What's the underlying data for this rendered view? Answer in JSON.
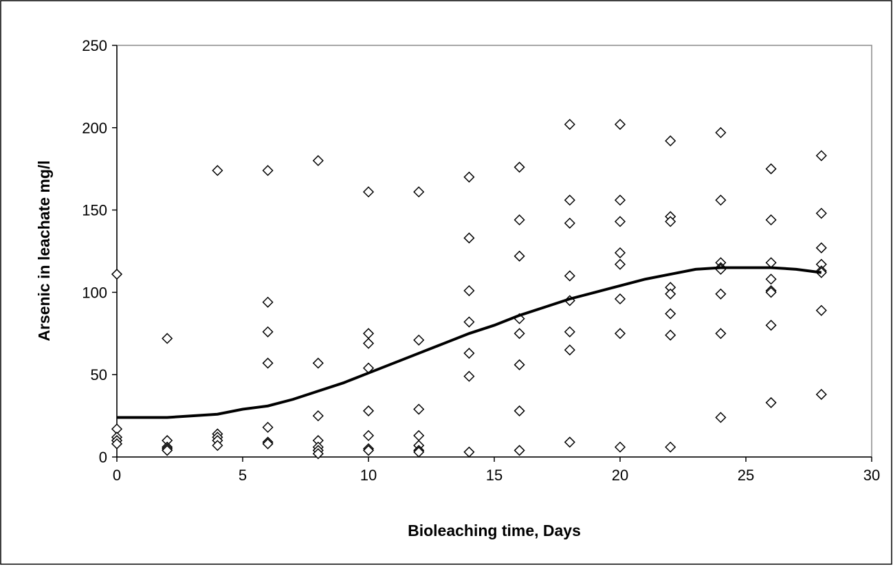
{
  "chart_data": {
    "type": "scatter",
    "x_label": "Bioleaching time, Days",
    "y_label": "Arsenic in leachate mg/l",
    "xlim": [
      0,
      30
    ],
    "xticks": [
      0,
      5,
      10,
      15,
      20,
      25,
      30
    ],
    "ylim": [
      0,
      250
    ],
    "yticks": [
      0,
      50,
      100,
      150,
      200,
      250
    ],
    "grid": false,
    "series": [
      {
        "type": "scatter",
        "color": "#000000",
        "x": [
          0,
          0,
          0,
          0,
          0,
          2,
          2,
          2,
          2,
          2,
          4,
          4,
          4,
          4,
          4,
          6,
          6,
          6,
          6,
          6,
          6,
          6,
          8,
          8,
          8,
          8,
          8,
          8,
          8,
          10,
          10,
          10,
          10,
          10,
          10,
          10,
          10,
          12,
          12,
          12,
          12,
          12,
          12,
          12,
          14,
          14,
          14,
          14,
          14,
          14,
          14,
          16,
          16,
          16,
          16,
          16,
          16,
          16,
          16,
          18,
          18,
          18,
          18,
          18,
          18,
          18,
          18,
          20,
          20,
          20,
          20,
          20,
          20,
          20,
          20,
          22,
          22,
          22,
          22,
          22,
          22,
          22,
          22,
          24,
          24,
          24,
          24,
          24,
          24,
          24,
          24,
          26,
          26,
          26,
          26,
          26,
          26,
          26,
          26,
          28,
          28,
          28,
          28,
          28,
          28,
          28,
          28
        ],
        "values": [
          111,
          17,
          12,
          10,
          8,
          72,
          10,
          6,
          5,
          4,
          174,
          14,
          12,
          10,
          7,
          174,
          94,
          76,
          57,
          18,
          9,
          8,
          180,
          57,
          25,
          10,
          6,
          4,
          2,
          161,
          75,
          69,
          54,
          28,
          13,
          5,
          4,
          161,
          71,
          29,
          13,
          7,
          4,
          3,
          170,
          133,
          101,
          82,
          63,
          49,
          3,
          176,
          144,
          122,
          84,
          75,
          56,
          28,
          4,
          202,
          156,
          142,
          110,
          95,
          76,
          65,
          9,
          202,
          156,
          143,
          124,
          117,
          96,
          75,
          6,
          192,
          146,
          143,
          103,
          99,
          87,
          74,
          6,
          197,
          156,
          118,
          115,
          114,
          99,
          75,
          24,
          175,
          144,
          118,
          108,
          101,
          100,
          80,
          33,
          183,
          148,
          127,
          117,
          113,
          112,
          89,
          38
        ]
      },
      {
        "type": "line",
        "color": "#000000",
        "x": [
          0,
          1,
          2,
          3,
          4,
          5,
          6,
          7,
          8,
          9,
          10,
          11,
          12,
          13,
          14,
          15,
          16,
          17,
          18,
          19,
          20,
          21,
          22,
          23,
          24,
          25,
          26,
          27,
          28
        ],
        "values": [
          24,
          24,
          24,
          25,
          26,
          29,
          31,
          35,
          40,
          45,
          51,
          57,
          63,
          69,
          75,
          80,
          86,
          91,
          96,
          100,
          104,
          108,
          111,
          114,
          115,
          115,
          115,
          114,
          112
        ]
      }
    ]
  }
}
